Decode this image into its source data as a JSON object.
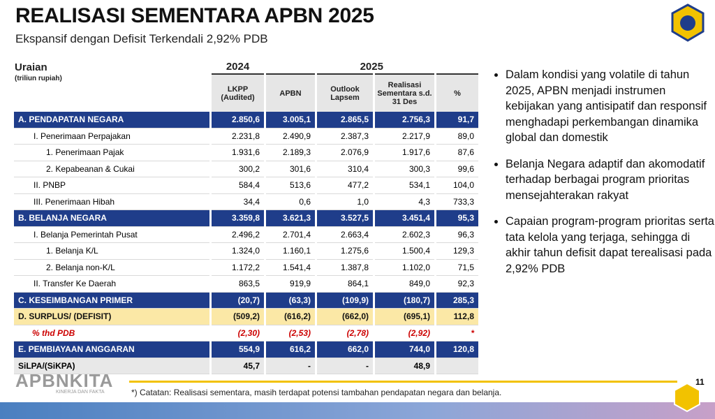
{
  "header": {
    "title": "REALISASI SEMENTARA APBN 2025",
    "subtitle": "Ekspansif dengan Defisit Terkendali 2,92% PDB"
  },
  "table": {
    "corner": {
      "title": "Uraian",
      "unit": "(triliun rupiah)"
    },
    "years": [
      "2024",
      "2025"
    ],
    "columns": [
      "LKPP (Audited)",
      "APBN",
      "Outlook Lapsem",
      "Realisasi Sementara s.d. 31 Des",
      "%"
    ],
    "rows": [
      [
        "A. PENDAPATAN NEGARA",
        "2.850,6",
        "3.005,1",
        "2.865,5",
        "2.756,3",
        "91,7"
      ],
      [
        "I. Penerimaan Perpajakan",
        "2.231,8",
        "2.490,9",
        "2.387,3",
        "2.217,9",
        "89,0"
      ],
      [
        "1. Penerimaan Pajak",
        "1.931,6",
        "2.189,3",
        "2.076,9",
        "1.917,6",
        "87,6"
      ],
      [
        "2. Kepabeanan & Cukai",
        "300,2",
        "301,6",
        "310,4",
        "300,3",
        "99,6"
      ],
      [
        "II. PNBP",
        "584,4",
        "513,6",
        "477,2",
        "534,1",
        "104,0"
      ],
      [
        "III. Penerimaan Hibah",
        "34,4",
        "0,6",
        "1,0",
        "4,3",
        "733,3"
      ],
      [
        "B. BELANJA NEGARA",
        "3.359,8",
        "3.621,3",
        "3.527,5",
        "3.451,4",
        "95,3"
      ],
      [
        "I. Belanja Pemerintah Pusat",
        "2.496,2",
        "2.701,4",
        "2.663,4",
        "2.602,3",
        "96,3"
      ],
      [
        "1. Belanja K/L",
        "1.324,0",
        "1.160,1",
        "1.275,6",
        "1.500,4",
        "129,3"
      ],
      [
        "2. Belanja non-K/L",
        "1.172,2",
        "1.541,4",
        "1.387,8",
        "1.102,0",
        "71,5"
      ],
      [
        "II. Transfer Ke Daerah",
        "863,5",
        "919,9",
        "864,1",
        "849,0",
        "92,3"
      ],
      [
        "C. KESEIMBANGAN PRIMER",
        "(20,7)",
        "(63,3)",
        "(109,9)",
        "(180,7)",
        "285,3"
      ],
      [
        "D. SURPLUS/ (DEFISIT)",
        "(509,2)",
        "(616,2)",
        "(662,0)",
        "(695,1)",
        "112,8"
      ],
      [
        "% thd PDB",
        "(2,30)",
        "(2,53)",
        "(2,78)",
        "(2,92)",
        "*"
      ],
      [
        "E. PEMBIAYAAN ANGGARAN",
        "554,9",
        "616,2",
        "662,0",
        "744,0",
        "120,8"
      ],
      [
        "SiLPA/(SiKPA)",
        "45,7",
        "-",
        "-",
        "48,9",
        null
      ]
    ]
  },
  "bullets": [
    "Dalam kondisi yang volatile di tahun 2025, APBN menjadi instrumen kebijakan yang antisipatif dan responsif menghadapi perkembangan dinamika global dan domestik",
    "Belanja Negara adaptif dan akomodatif terhadap berbagai program prioritas mensejahterakan rakyat",
    "Capaian program-program prioritas serta tata kelola yang terjaga, sehingga di akhir tahun defisit dapat terealisasi pada 2,92% PDB"
  ],
  "footer": {
    "logo": "APBNKITA",
    "tagline": "KINERJA DAN FAKTA",
    "note": "*) Catatan: Realisasi sementara, masih terdapat potensi tambahan pendapatan negara dan belanja.",
    "page": "11"
  }
}
